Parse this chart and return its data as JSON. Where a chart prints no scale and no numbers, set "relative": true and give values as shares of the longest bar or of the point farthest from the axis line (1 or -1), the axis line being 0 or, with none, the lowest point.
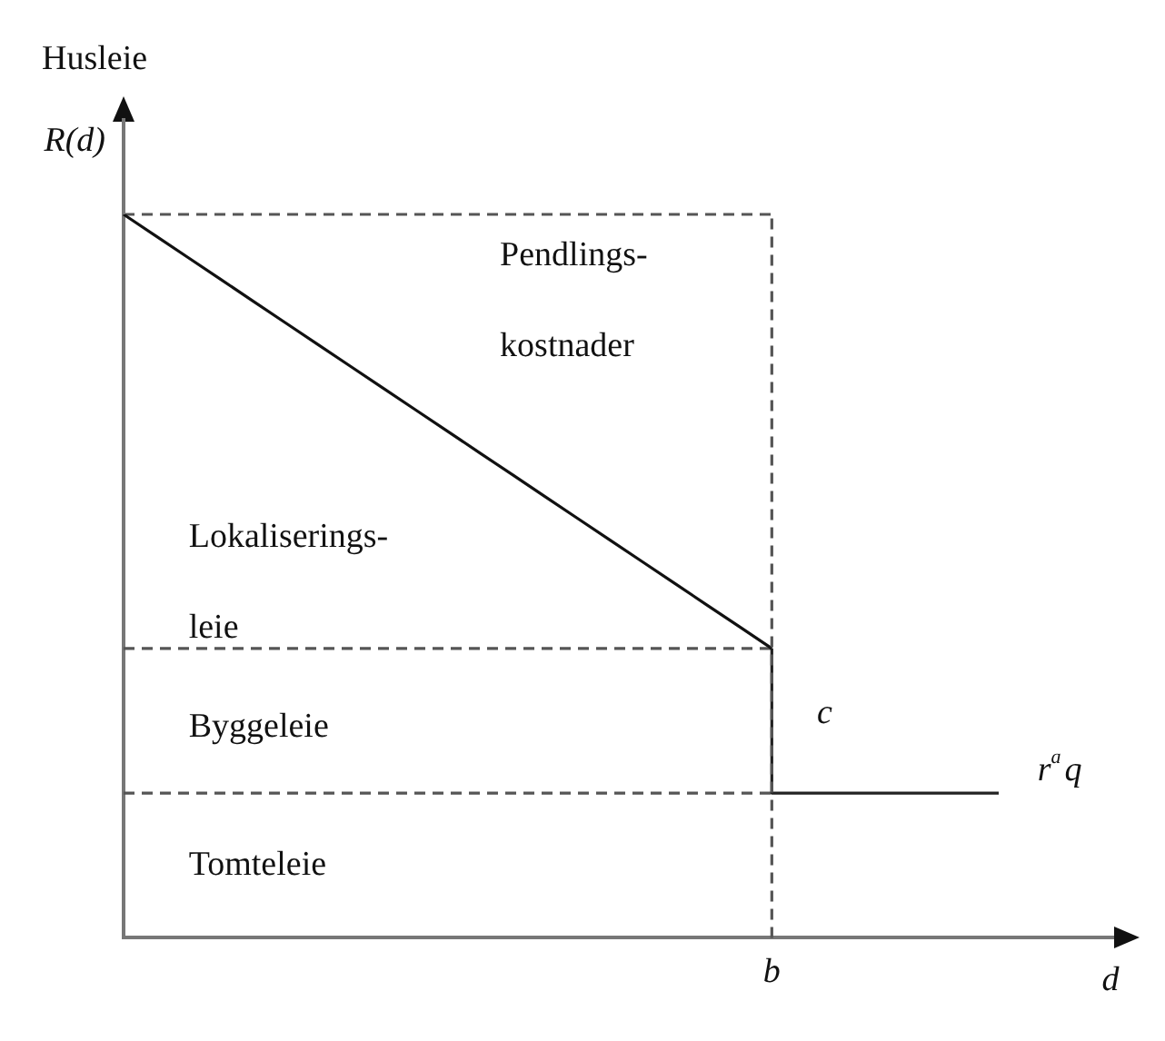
{
  "chart_data": {
    "type": "line",
    "relative": true,
    "xlabel": "d",
    "ylabel": "Husleie",
    "grid": false,
    "legend": false,
    "categories": [
      null,
      null,
      null,
      null,
      null,
      null,
      null,
      null,
      null,
      null,
      null,
      null,
      null,
      null,
      null,
      null,
      null,
      null,
      null,
      null,
      null,
      null,
      null,
      null,
      null,
      null,
      null,
      null,
      null,
      null,
      null
    ],
    "series": [
      {
        "color": "#111111",
        "values": [
          1,
          0.97,
          0.94,
          0.91,
          0.88,
          0.85,
          0.82,
          0.79,
          0.76,
          0.73,
          0.7,
          0.67,
          0.64,
          0.61,
          0.58,
          0.55,
          0.52,
          0.49,
          0.46,
          0.43,
          0.4,
          null,
          null,
          null,
          null,
          null,
          null,
          null,
          null,
          null,
          null
        ]
      },
      {
        "type": "step",
        "color": "#222222",
        "values": [
          null,
          null,
          null,
          null,
          null,
          null,
          null,
          null,
          null,
          null,
          null,
          null,
          null,
          null,
          null,
          null,
          null,
          null,
          null,
          null,
          0.4,
          0.2,
          0.2,
          0.2,
          0.2,
          0.2,
          0.2,
          0.2,
          null,
          null,
          null
        ]
      },
      {
        "color": "#555555",
        "line_style": "dashed",
        "values": [
          1,
          1,
          1,
          1,
          1,
          1,
          1,
          1,
          1,
          1,
          1,
          1,
          1,
          1,
          1,
          1,
          1,
          1,
          1,
          1,
          1,
          null,
          null,
          null,
          null,
          null,
          null,
          null,
          null,
          null,
          null
        ]
      },
      {
        "color": "#555555",
        "line_style": "dashed",
        "values": [
          0.4,
          0.4,
          0.4,
          0.4,
          0.4,
          0.4,
          0.4,
          0.4,
          0.4,
          0.4,
          0.4,
          0.4,
          0.4,
          0.4,
          0.4,
          0.4,
          0.4,
          0.4,
          0.4,
          0.4,
          0.4,
          null,
          null,
          null,
          null,
          null,
          null,
          null,
          null,
          null,
          null
        ]
      },
      {
        "color": "#555555",
        "line_style": "dashed",
        "values": [
          0.2,
          0.2,
          0.2,
          0.2,
          0.2,
          0.2,
          0.2,
          0.2,
          0.2,
          0.2,
          0.2,
          0.2,
          0.2,
          0.2,
          0.2,
          0.2,
          0.2,
          0.2,
          0.2,
          0.2,
          0.2,
          null,
          null,
          null,
          null,
          null,
          null,
          null,
          null,
          null,
          null
        ]
      }
    ],
    "annotations": [
      "R(d)",
      "Pendlings-\nkostnader",
      "Lokaliserings-\nleie",
      "Byggeleie",
      "Tomteleie",
      "c",
      "r$^{a}$q",
      "b"
    ]
  }
}
